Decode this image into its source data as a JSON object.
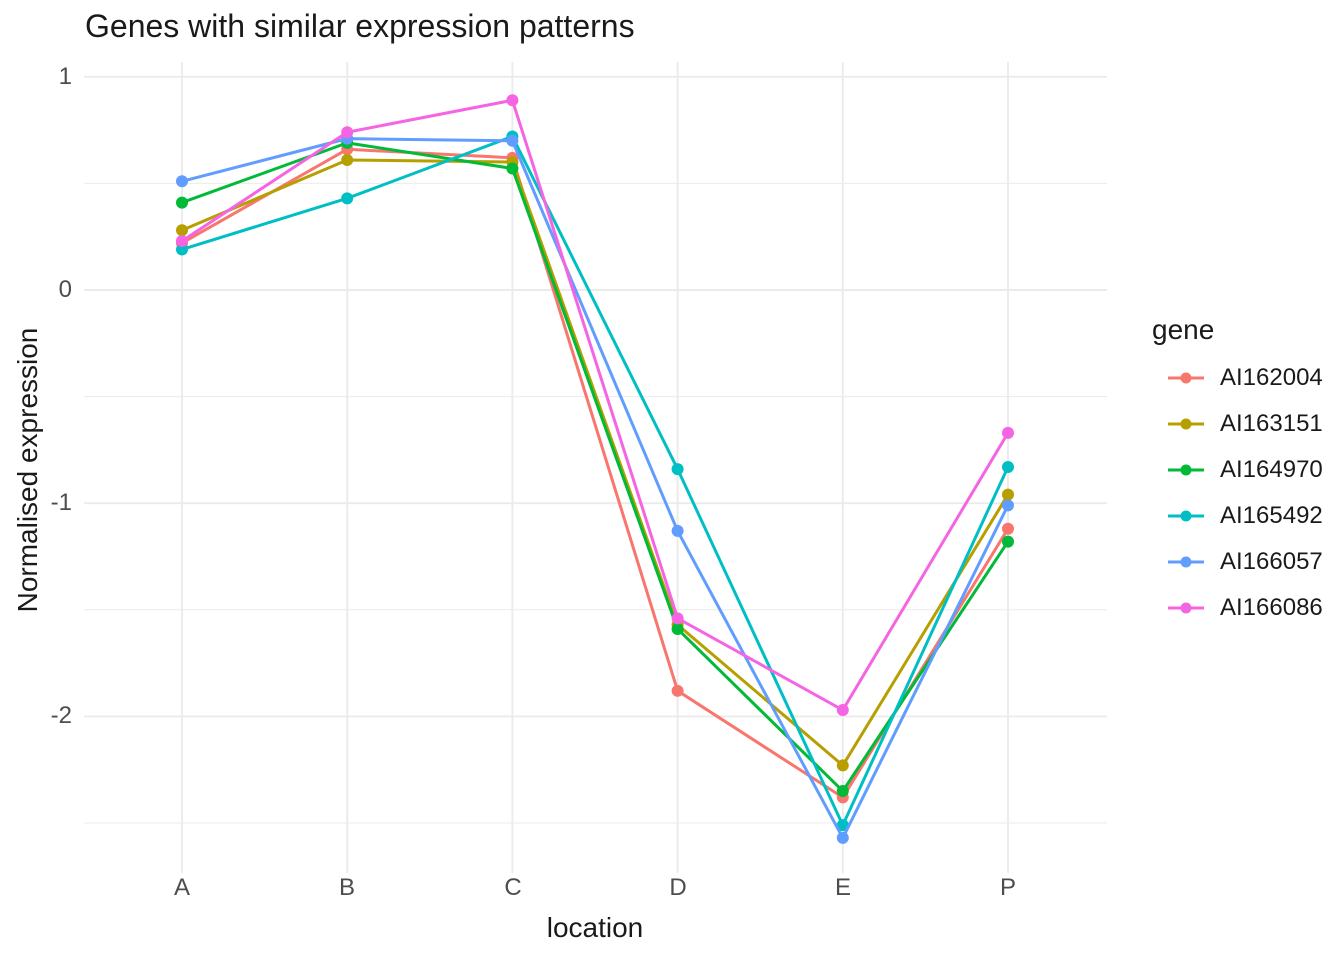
{
  "title": "Genes with similar expression patterns",
  "axes": {
    "x_label": "location",
    "y_label": "Normalised expression"
  },
  "legend": {
    "title": "gene"
  },
  "colors": {
    "background": "#FFFFFF",
    "grid": "#EBEBEB",
    "tick_text": "#4D4D4D",
    "text": "#1A1A1A"
  },
  "chart_data": {
    "type": "line",
    "title": "Genes with similar expression patterns",
    "xlabel": "location",
    "ylabel": "Normalised expression",
    "categories": [
      "A",
      "B",
      "C",
      "D",
      "E",
      "P"
    ],
    "series": [
      {
        "name": "AI162004",
        "color": "#F8766D",
        "values": [
          0.22,
          0.66,
          0.62,
          -1.88,
          -2.38,
          -1.12
        ]
      },
      {
        "name": "AI163151",
        "color": "#B79F00",
        "values": [
          0.28,
          0.61,
          0.6,
          -1.57,
          -2.23,
          -0.96
        ]
      },
      {
        "name": "AI164970",
        "color": "#00BA38",
        "values": [
          0.41,
          0.69,
          0.57,
          -1.59,
          -2.35,
          -1.18
        ]
      },
      {
        "name": "AI165492",
        "color": "#00BFC4",
        "values": [
          0.19,
          0.43,
          0.72,
          -0.84,
          -2.51,
          -0.83
        ]
      },
      {
        "name": "AI166057",
        "color": "#619CFF",
        "values": [
          0.51,
          0.71,
          0.7,
          -1.13,
          -2.57,
          -1.01
        ]
      },
      {
        "name": "AI166086",
        "color": "#F564E3",
        "values": [
          0.23,
          0.74,
          0.89,
          -1.54,
          -1.97,
          -0.67
        ]
      }
    ],
    "y_ticks": [
      1,
      0,
      -1,
      -2
    ],
    "y_tick_labels": [
      "1",
      "0",
      "-1",
      "-2"
    ],
    "y_minor_ticks": [
      0.5,
      -0.5,
      -1.5,
      -2.5
    ],
    "ylim": [
      -2.74,
      1.06
    ],
    "grid": true,
    "legend_position": "right",
    "legend_title": "gene",
    "marker": "circle"
  }
}
